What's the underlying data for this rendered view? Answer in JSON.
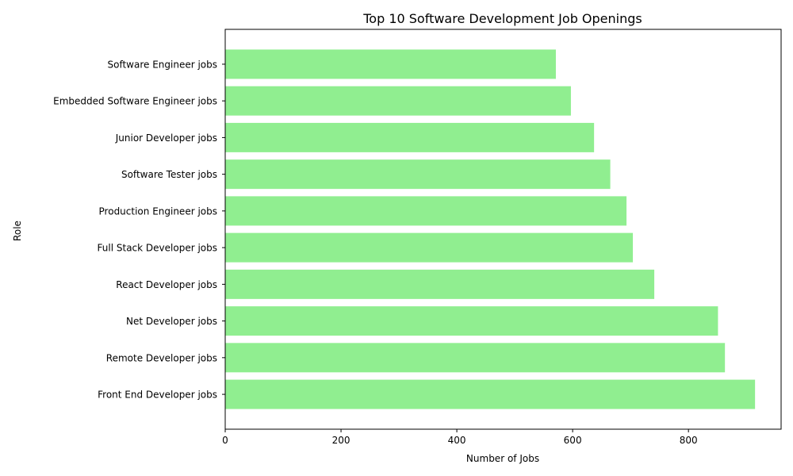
{
  "chart_data": {
    "type": "bar",
    "orientation": "horizontal",
    "title": "Top 10 Software Development Job Openings",
    "xlabel": "Number of Jobs",
    "ylabel": "Role",
    "xlim": [
      0,
      960
    ],
    "xticks": [
      0,
      200,
      400,
      600,
      800
    ],
    "grid": false,
    "bar_color": "#90ee90",
    "categories": [
      "Front End Developer jobs",
      "Remote Developer jobs",
      "Net Developer jobs",
      "React Developer jobs",
      "Full Stack Developer jobs",
      "Production Engineer jobs",
      "Software Tester jobs",
      "Junior Developer jobs",
      "Embedded Software Engineer jobs",
      "Software Engineer jobs"
    ],
    "values": [
      915,
      863,
      851,
      741,
      704,
      693,
      665,
      637,
      597,
      571
    ]
  }
}
